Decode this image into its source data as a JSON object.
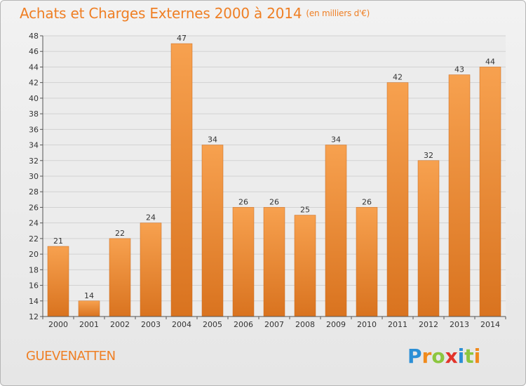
{
  "header": {
    "title": "Achats et Charges Externes 2000 à 2014",
    "subtitle": "(en milliers d'€)"
  },
  "footer": {
    "commune": "GUEVENATTEN",
    "logo_text": "Proxiti"
  },
  "colors": {
    "bar_light": "#f7a14f",
    "bar_dark": "#d9731f",
    "title": "#ef7f24"
  },
  "chart_data": {
    "type": "bar",
    "title": "Achats et Charges Externes 2000 à 2014",
    "subtitle": "(en milliers d'€)",
    "categories": [
      "2000",
      "2001",
      "2002",
      "2003",
      "2004",
      "2005",
      "2006",
      "2007",
      "2008",
      "2009",
      "2010",
      "2011",
      "2012",
      "2013",
      "2014"
    ],
    "values": [
      21,
      14,
      22,
      24,
      47,
      34,
      26,
      26,
      25,
      34,
      26,
      42,
      32,
      43,
      44
    ],
    "ylim": [
      12,
      48
    ],
    "yticks": [
      12,
      14,
      16,
      18,
      20,
      22,
      24,
      26,
      28,
      30,
      32,
      34,
      36,
      38,
      40,
      42,
      44,
      46,
      48
    ],
    "grid": true,
    "legend": "none"
  }
}
